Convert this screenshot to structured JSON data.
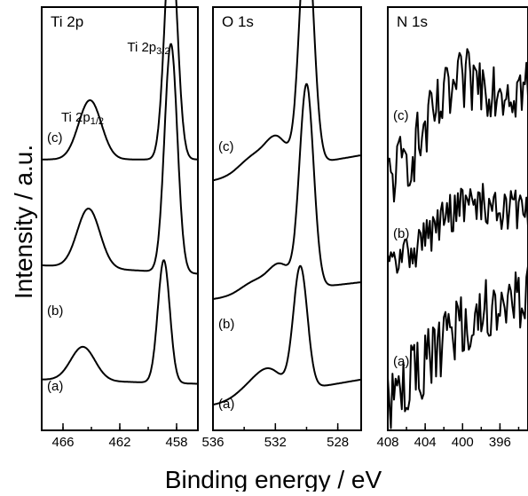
{
  "figure": {
    "ylabel": "Intensity / a.u.",
    "xlabel": "Binding energy / eV"
  },
  "chart_data": [
    {
      "type": "line",
      "title": "Ti 2p",
      "xlim": [
        467.5,
        456.5
      ],
      "ylim": [
        0,
        1
      ],
      "x_ticks": [
        466,
        462,
        458
      ],
      "annotations": [
        {
          "text": "Ti 2p",
          "sub": "3/2",
          "x": 458.6
        },
        {
          "text": "Ti 2p",
          "sub": "1/2",
          "x": 464.0
        }
      ],
      "series": [
        {
          "name": "(c)",
          "peaks": [
            [
              458.4,
              0.53,
              0.45
            ],
            [
              464.1,
              0.14,
              0.8
            ]
          ],
          "baseline": [
            0.64,
            0.64
          ],
          "noise": 0
        },
        {
          "name": "(b)",
          "peaks": [
            [
              458.4,
              0.54,
              0.45
            ],
            [
              464.2,
              0.14,
              0.8
            ]
          ],
          "baseline": [
            0.39,
            0.37
          ],
          "noise": 0
        },
        {
          "name": "(a)",
          "peaks": [
            [
              458.9,
              0.29,
              0.42
            ],
            [
              464.6,
              0.08,
              0.85
            ]
          ],
          "baseline": [
            0.12,
            0.11
          ],
          "noise": 0
        }
      ]
    },
    {
      "type": "line",
      "title": "O 1s",
      "xlim": [
        536,
        526.5
      ],
      "ylim": [
        0,
        1
      ],
      "x_ticks": [
        536,
        532,
        528
      ],
      "series": [
        {
          "name": "(c)",
          "peaks": [
            [
              530.0,
              0.57,
              0.45
            ],
            [
              531.9,
              0.07,
              0.7
            ],
            [
              533.4,
              0.04,
              0.9
            ]
          ],
          "baseline": [
            0.59,
            0.65
          ],
          "noise": 0
        },
        {
          "name": "(b)",
          "peaks": [
            [
              530.0,
              0.48,
              0.45
            ],
            [
              531.7,
              0.06,
              0.7
            ],
            [
              533.3,
              0.03,
              0.9
            ]
          ],
          "baseline": [
            0.31,
            0.35
          ],
          "noise": 0
        },
        {
          "name": "(a)",
          "peaks": [
            [
              530.4,
              0.29,
              0.45
            ],
            [
              532.3,
              0.05,
              0.8
            ],
            [
              533.5,
              0.03,
              0.9
            ]
          ],
          "baseline": [
            0.06,
            0.12
          ],
          "noise": 0
        }
      ]
    },
    {
      "type": "line",
      "title": "N 1s",
      "xlim": [
        408,
        393
      ],
      "ylim": [
        0,
        1
      ],
      "x_ticks": [
        408,
        404,
        400,
        396
      ],
      "series": [
        {
          "name": "(c)",
          "peaks": [
            [
              400.2,
              0.12,
              3.5
            ]
          ],
          "baseline": [
            0.58,
            0.8
          ],
          "noise": 0.08
        },
        {
          "name": "(b)",
          "peaks": [
            [
              400.0,
              0.08,
              3.5
            ]
          ],
          "baseline": [
            0.38,
            0.51
          ],
          "noise": 0.05
        },
        {
          "name": "(a)",
          "peaks": [
            [
              398.5,
              0.06,
              4.0
            ]
          ],
          "baseline": [
            0.07,
            0.3
          ],
          "noise": 0.08
        }
      ]
    }
  ]
}
